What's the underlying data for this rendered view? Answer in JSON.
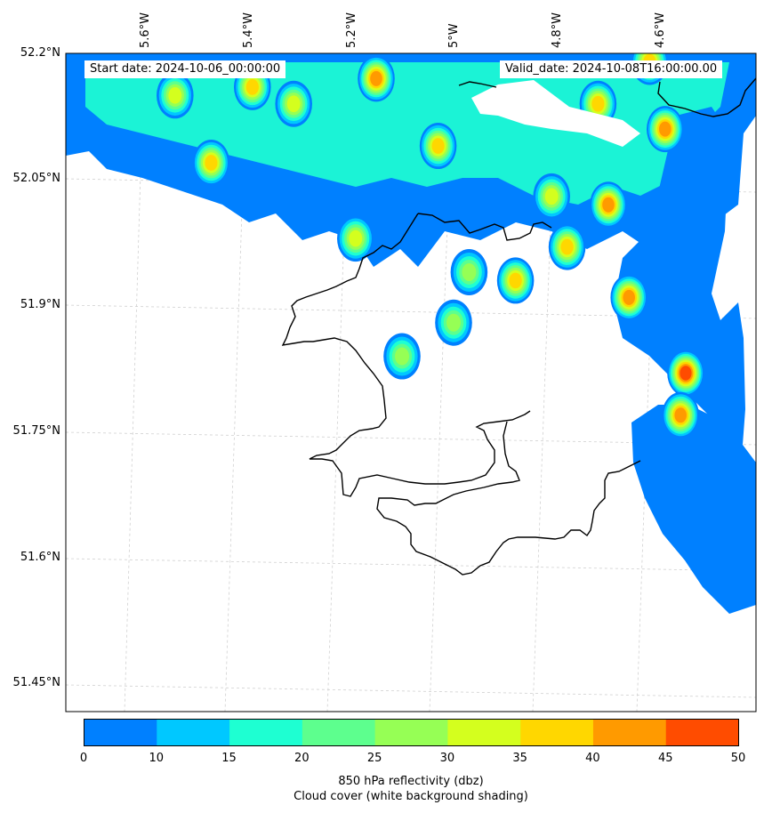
{
  "info": {
    "start_date": "Start date: 2024-10-06_00:00:00",
    "valid_date": "Valid_date: 2024-10-08T16:00:00.00"
  },
  "axes": {
    "lon_labels": [
      "5.6°W",
      "5.4°W",
      "5.2°W",
      "5°W",
      "4.8°W",
      "4.6°W"
    ],
    "lat_labels": [
      "52.2°N",
      "52.05°N",
      "51.9°N",
      "51.75°N",
      "51.6°N",
      "51.45°N"
    ]
  },
  "colorbar": {
    "ticks": [
      "0",
      "10",
      "15",
      "20",
      "25",
      "30",
      "35",
      "40",
      "45",
      "50"
    ],
    "colors": [
      "#0080ff",
      "#00c8ff",
      "#1effd2",
      "#5dff8e",
      "#96ff55",
      "#d4ff1e",
      "#ffd700",
      "#ff9a00",
      "#ff4c00"
    ],
    "label_line1": "850 hPa reflectivity (dbz)",
    "label_line2": "Cloud cover (white background shading)"
  },
  "chart_data": {
    "type": "heatmap",
    "variable": "850 hPa reflectivity (dbz)",
    "overlay": "Cloud cover (white background shading)",
    "start_date": "2024-10-06_00:00:00",
    "valid_date": "2024-10-08T16:00:00.00",
    "lon_ticks": [
      -5.6,
      -5.4,
      -5.2,
      -5.0,
      -4.8,
      -4.6
    ],
    "lat_ticks": [
      52.2,
      52.05,
      51.9,
      51.75,
      51.6,
      51.45
    ],
    "levels": [
      0,
      10,
      15,
      20,
      25,
      30,
      35,
      40,
      45,
      50
    ],
    "grid": true,
    "coastline": true,
    "cells": [
      {
        "lon": -5.39,
        "lat": 52.16,
        "dbz": 35
      },
      {
        "lon": -5.15,
        "lat": 52.17,
        "dbz": 42
      },
      {
        "lon": -5.31,
        "lat": 52.14,
        "dbz": 32
      },
      {
        "lon": -5.03,
        "lat": 52.09,
        "dbz": 37
      },
      {
        "lon": -5.47,
        "lat": 52.07,
        "dbz": 36
      },
      {
        "lon": -5.54,
        "lat": 52.15,
        "dbz": 32
      },
      {
        "lon": -4.72,
        "lat": 52.14,
        "dbz": 38
      },
      {
        "lon": -4.62,
        "lat": 52.19,
        "dbz": 38
      },
      {
        "lon": -4.59,
        "lat": 52.11,
        "dbz": 40
      },
      {
        "lon": -4.7,
        "lat": 52.02,
        "dbz": 42
      },
      {
        "lon": -4.66,
        "lat": 51.91,
        "dbz": 40
      },
      {
        "lon": -4.55,
        "lat": 51.82,
        "dbz": 46
      },
      {
        "lon": -4.56,
        "lat": 51.77,
        "dbz": 44
      },
      {
        "lon": -4.78,
        "lat": 51.97,
        "dbz": 38
      },
      {
        "lon": -4.88,
        "lat": 51.93,
        "dbz": 35
      },
      {
        "lon": -4.81,
        "lat": 52.03,
        "dbz": 30
      },
      {
        "lon": -5.19,
        "lat": 51.98,
        "dbz": 32
      },
      {
        "lon": -4.97,
        "lat": 51.94,
        "dbz": 28
      },
      {
        "lon": -5.1,
        "lat": 51.84,
        "dbz": 27
      },
      {
        "lon": -5.0,
        "lat": 51.88,
        "dbz": 26
      }
    ],
    "open_sea_field": {
      "lon_range": [
        -4.66,
        -4.5
      ],
      "lat_range": [
        51.5,
        51.76
      ],
      "dbz": 5
    }
  }
}
